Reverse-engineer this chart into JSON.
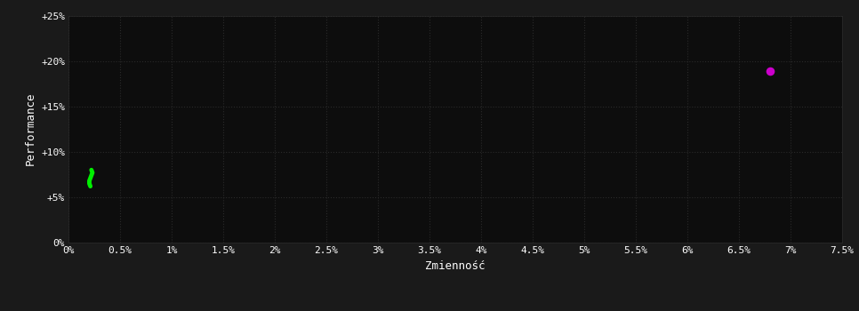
{
  "background_color": "#1a1a1a",
  "plot_bg_color": "#0d0d0d",
  "grid_color": "#2a2a2a",
  "text_color": "#ffffff",
  "xlabel": "Zmienność",
  "ylabel": "Performance",
  "xlim": [
    0,
    0.075
  ],
  "ylim": [
    0,
    0.25
  ],
  "xtick_labels": [
    "0%",
    "0.5%",
    "1%",
    "1.5%",
    "2%",
    "2.5%",
    "3%",
    "3.5%",
    "4%",
    "4.5%",
    "5%",
    "5.5%",
    "6%",
    "6.5%",
    "7%",
    "7.5%"
  ],
  "xtick_values": [
    0,
    0.005,
    0.01,
    0.015,
    0.02,
    0.025,
    0.03,
    0.035,
    0.04,
    0.045,
    0.05,
    0.055,
    0.06,
    0.065,
    0.07,
    0.075
  ],
  "ytick_labels": [
    "0%",
    "+5%",
    "+10%",
    "+15%",
    "+20%",
    "+25%"
  ],
  "ytick_values": [
    0,
    0.05,
    0.1,
    0.15,
    0.2,
    0.25
  ],
  "green_points_x": [
    0.0022,
    0.0023,
    0.0022,
    0.0021,
    0.002,
    0.002,
    0.0021
  ],
  "green_points_y": [
    0.08,
    0.077,
    0.074,
    0.071,
    0.068,
    0.065,
    0.062
  ],
  "magenta_point": [
    0.068,
    0.189
  ],
  "green_color": "#00ee00",
  "magenta_color": "#cc00cc",
  "green_linewidth": 3.5,
  "magenta_size": 35,
  "font_size_ticks": 8,
  "font_size_label": 9
}
